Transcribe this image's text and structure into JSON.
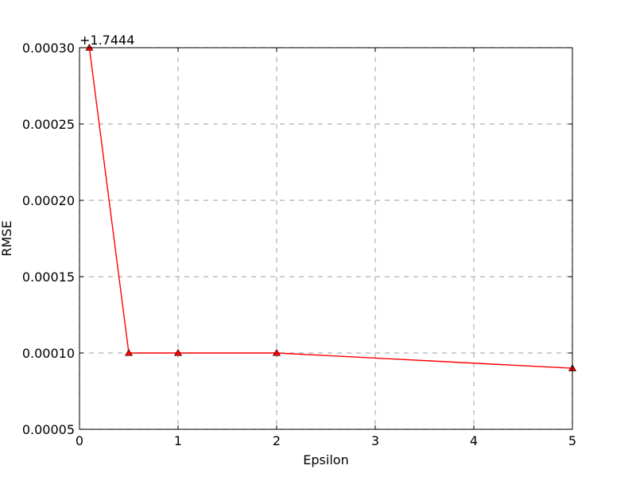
{
  "chart_data": {
    "type": "line",
    "title": "",
    "xlabel": "Epsilon",
    "ylabel": "RMSE",
    "y_offset_label": "+1.7444",
    "xlim": [
      0,
      5
    ],
    "ylim": [
      5e-05,
      0.0003
    ],
    "x_ticks": [
      "0",
      "1",
      "2",
      "3",
      "4",
      "5"
    ],
    "y_ticks": [
      "0.00030",
      "0.00025",
      "0.00020",
      "0.00015",
      "0.00010",
      "0.00005"
    ],
    "grid": true,
    "series": [
      {
        "color": "#ff0000",
        "marker": "triangle-up",
        "x": [
          0.1,
          0.5,
          1,
          2,
          5
        ],
        "y": [
          0.0003,
          0.0001,
          0.0001,
          0.0001,
          9e-05
        ]
      }
    ]
  }
}
